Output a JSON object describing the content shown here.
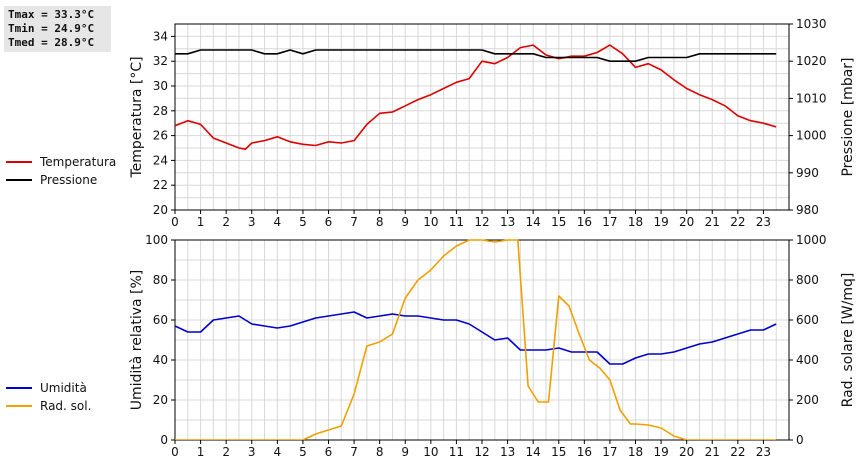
{
  "stats": {
    "tmax": "Tmax = 33.3°C",
    "tmin": "Tmin = 24.9°C",
    "tmed": "Tmed = 28.9°C"
  },
  "colors": {
    "temperature": "#dd0000",
    "pressure": "#000000",
    "humidity": "#0000cc",
    "radiation": "#f0a000",
    "grid": "#d8d8d8"
  },
  "legend_top": [
    {
      "name": "Temperatura",
      "color": "#dd0000"
    },
    {
      "name": "Pressione",
      "color": "#000000"
    }
  ],
  "legend_bottom": [
    {
      "name": "Umidità",
      "color": "#0000cc"
    },
    {
      "name": "Rad. sol.",
      "color": "#f0a000"
    }
  ],
  "chart_data": [
    {
      "type": "line",
      "ylabel": "Temperatura [°C]",
      "ylabel_right": "Pressione [mbar]",
      "xlim": [
        0,
        24
      ],
      "ylim": [
        20,
        35
      ],
      "ylim_right": [
        980,
        1030
      ],
      "x_ticks": [
        "0",
        "1",
        "2",
        "3",
        "4",
        "5",
        "6",
        "7",
        "8",
        "9",
        "10",
        "11",
        "12",
        "13",
        "14",
        "15",
        "16",
        "17",
        "18",
        "19",
        "20",
        "21",
        "22",
        "23"
      ],
      "y_ticks": [
        "20",
        "22",
        "24",
        "26",
        "28",
        "30",
        "32",
        "34"
      ],
      "y_ticks_right": [
        "980",
        "990",
        "1000",
        "1010",
        "1020",
        "1030"
      ],
      "grid": true,
      "legend": "left",
      "series": [
        {
          "name": "Temperatura",
          "axis": "left",
          "x": [
            0,
            0.5,
            1,
            1.5,
            2,
            2.5,
            2.75,
            3,
            3.5,
            4,
            4.5,
            5,
            5.5,
            6,
            6.5,
            7,
            7.5,
            8,
            8.5,
            9,
            9.5,
            10,
            10.5,
            11,
            11.5,
            12,
            12.5,
            13,
            13.5,
            14,
            14.5,
            15,
            15.5,
            16,
            16.5,
            17,
            17.5,
            18,
            18.5,
            19,
            19.5,
            20,
            20.5,
            21,
            21.5,
            22,
            22.5,
            23,
            23.5
          ],
          "y": [
            26.8,
            27.2,
            26.9,
            25.8,
            25.4,
            25.0,
            24.9,
            25.4,
            25.6,
            25.9,
            25.5,
            25.3,
            25.2,
            25.5,
            25.4,
            25.6,
            26.9,
            27.8,
            27.9,
            28.4,
            28.9,
            29.3,
            29.8,
            30.3,
            30.6,
            32.0,
            31.8,
            32.3,
            33.1,
            33.3,
            32.5,
            32.2,
            32.4,
            32.4,
            32.7,
            33.3,
            32.6,
            31.5,
            31.8,
            31.3,
            30.5,
            29.8,
            29.3,
            28.9,
            28.4,
            27.6,
            27.2,
            27.0,
            26.7
          ]
        },
        {
          "name": "Pressione",
          "axis": "right",
          "x": [
            0,
            0.5,
            1,
            1.5,
            2,
            2.5,
            3,
            3.5,
            4,
            4.5,
            5,
            5.5,
            6,
            6.5,
            7,
            7.5,
            8,
            8.5,
            9,
            9.5,
            10,
            10.5,
            11,
            11.5,
            12,
            12.5,
            13,
            13.5,
            14,
            14.5,
            15,
            15.5,
            16,
            16.5,
            17,
            17.5,
            18,
            18.5,
            19,
            19.5,
            20,
            20.5,
            21,
            21.5,
            22,
            22.5,
            23,
            23.5
          ],
          "y": [
            1022,
            1022,
            1023,
            1023,
            1023,
            1023,
            1023,
            1022,
            1022,
            1023,
            1022,
            1023,
            1023,
            1023,
            1023,
            1023,
            1023,
            1023,
            1023,
            1023,
            1023,
            1023,
            1023,
            1023,
            1023,
            1022,
            1022,
            1022,
            1022,
            1021,
            1021,
            1021,
            1021,
            1021,
            1020,
            1020,
            1020,
            1021,
            1021,
            1021,
            1021,
            1022,
            1022,
            1022,
            1022,
            1022,
            1022,
            1022
          ]
        }
      ]
    },
    {
      "type": "line",
      "ylabel": "Umidità relativa [%]",
      "ylabel_right": "Rad. solare [W/mq]",
      "xlim": [
        0,
        24
      ],
      "ylim": [
        0,
        100
      ],
      "ylim_right": [
        0,
        1000
      ],
      "x_ticks": [
        "0",
        "1",
        "2",
        "3",
        "4",
        "5",
        "6",
        "7",
        "8",
        "9",
        "10",
        "11",
        "12",
        "13",
        "14",
        "15",
        "16",
        "17",
        "18",
        "19",
        "20",
        "21",
        "22",
        "23"
      ],
      "y_ticks": [
        "0",
        "20",
        "40",
        "60",
        "80",
        "100"
      ],
      "y_ticks_right": [
        "0",
        "200",
        "400",
        "600",
        "800",
        "1000"
      ],
      "grid": true,
      "legend": "left",
      "series": [
        {
          "name": "Umidità",
          "axis": "left",
          "x": [
            0,
            0.5,
            1,
            1.5,
            2,
            2.5,
            3,
            3.5,
            4,
            4.5,
            5,
            5.5,
            6,
            6.5,
            7,
            7.5,
            8,
            8.5,
            9,
            9.5,
            10,
            10.5,
            11,
            11.5,
            12,
            12.5,
            13,
            13.5,
            14,
            14.5,
            15,
            15.5,
            16,
            16.5,
            17,
            17.5,
            18,
            18.5,
            19,
            19.5,
            20,
            20.5,
            21,
            21.5,
            22,
            22.5,
            23,
            23.5
          ],
          "y": [
            57,
            54,
            54,
            60,
            61,
            62,
            58,
            57,
            56,
            57,
            59,
            61,
            62,
            63,
            64,
            61,
            62,
            63,
            62,
            62,
            61,
            60,
            60,
            58,
            54,
            50,
            51,
            45,
            45,
            45,
            46,
            44,
            44,
            44,
            38,
            38,
            41,
            43,
            43,
            44,
            46,
            48,
            49,
            51,
            53,
            55,
            55,
            58
          ]
        },
        {
          "name": "Rad. sol.",
          "axis": "right",
          "x": [
            0,
            1,
            2,
            3,
            4,
            5,
            5.5,
            6,
            6.5,
            7,
            7.5,
            8,
            8.5,
            9,
            9.5,
            10,
            10.5,
            11,
            11.5,
            12,
            12.5,
            13,
            13.4,
            13.8,
            14.2,
            14.6,
            15,
            15.4,
            15.8,
            16.2,
            16.6,
            17,
            17.4,
            17.8,
            18,
            18.5,
            19,
            19.5,
            20,
            21,
            22,
            23,
            23.5
          ],
          "y": [
            0,
            0,
            0,
            0,
            0,
            0,
            30,
            50,
            70,
            230,
            470,
            490,
            530,
            710,
            800,
            850,
            920,
            970,
            1000,
            1000,
            990,
            1000,
            1000,
            270,
            190,
            190,
            720,
            670,
            530,
            400,
            360,
            300,
            150,
            80,
            80,
            75,
            60,
            20,
            0,
            0,
            0,
            0,
            0
          ]
        }
      ]
    }
  ]
}
